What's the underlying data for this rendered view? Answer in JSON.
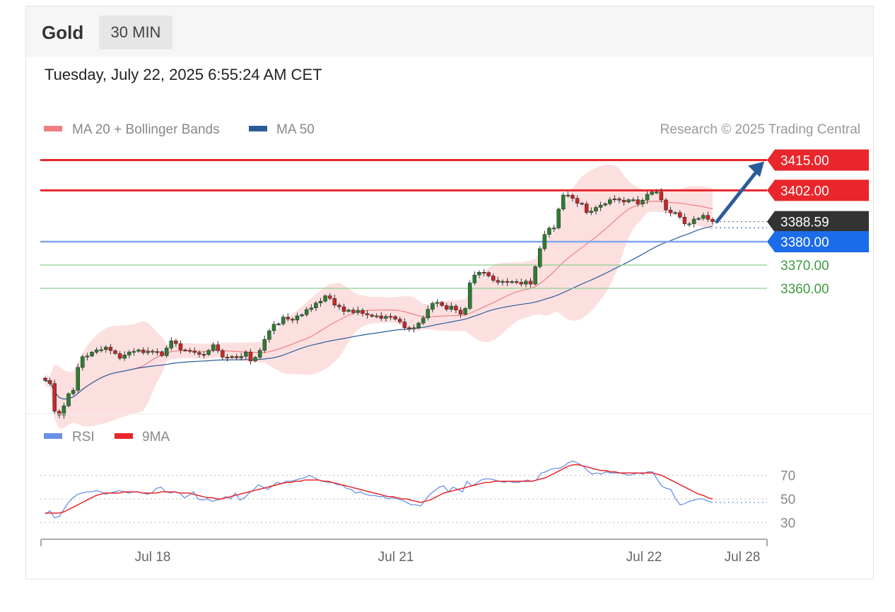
{
  "header": {
    "symbol": "Gold",
    "timeframe": "30 MIN"
  },
  "timestamp": "Tuesday, July 22, 2025 6:55:24 AM CET",
  "legend": {
    "ma20_label": "MA 20 + Bollinger Bands",
    "ma50_label": "MA 50",
    "credit": "Research © 2025 Trading Central",
    "ma20_color": "#f08080",
    "ma50_color": "#2b5c9a"
  },
  "rsi_legend": {
    "rsi_label": "RSI",
    "ma_label": "9MA",
    "rsi_color": "#6b8fe6",
    "ma_color": "#e8262b"
  },
  "chart_data": [
    {
      "type": "candlestick",
      "ylim": [
        3295,
        3420
      ],
      "x_tick_labels": [
        "Jul 18",
        "Jul 21",
        "Jul 22",
        "Jul 28"
      ],
      "candles_close": [
        3320.5,
        3319.2,
        3307.3,
        3305.7,
        3309.6,
        3314.8,
        3316.3,
        3326.1,
        3330.7,
        3331.0,
        3332.6,
        3333.6,
        3333.7,
        3334.8,
        3333.3,
        3332.0,
        3330.0,
        3331.4,
        3332.7,
        3333.0,
        3333.6,
        3332.4,
        3333.1,
        3332.9,
        3332.8,
        3331.1,
        3334.4,
        3337.5,
        3336.3,
        3333.6,
        3333.4,
        3333.0,
        3332.5,
        3331.7,
        3331.6,
        3333.4,
        3335.8,
        3333.3,
        3330.5,
        3330.3,
        3330.8,
        3330.2,
        3330.8,
        3332.7,
        3328.9,
        3330.4,
        3333.4,
        3338.1,
        3341.8,
        3344.6,
        3344.8,
        3347.7,
        3346.8,
        3346.4,
        3348.2,
        3348.7,
        3350.9,
        3351.6,
        3353.7,
        3354.5,
        3356.8,
        3355.7,
        3352.8,
        3352.1,
        3350.1,
        3350.7,
        3349.6,
        3350.6,
        3349.2,
        3348.6,
        3348.0,
        3348.2,
        3347.1,
        3348.0,
        3347.9,
        3346.8,
        3345.6,
        3343.1,
        3342.7,
        3343.1,
        3345.1,
        3347.3,
        3351.0,
        3353.6,
        3354.0,
        3352.6,
        3351.0,
        3352.4,
        3350.7,
        3348.9,
        3351.4,
        3362.3,
        3365.7,
        3366.9,
        3366.8,
        3365.3,
        3363.4,
        3362.6,
        3363.0,
        3362.6,
        3362.9,
        3362.6,
        3361.8,
        3363.1,
        3361.8,
        3369.3,
        3377.0,
        3383.1,
        3385.8,
        3385.9,
        3394.0,
        3400.0,
        3399.9,
        3398.6,
        3396.5,
        3396.2,
        3392.5,
        3393.1,
        3394.7,
        3395.7,
        3396.3,
        3398.0,
        3398.4,
        3397.8,
        3397.0,
        3398.0,
        3398.0,
        3396.2,
        3397.8,
        3400.3,
        3401.3,
        3401.3,
        3397.9,
        3393.6,
        3392.4,
        3392.5,
        3390.5,
        3387.7,
        3387.7,
        3389.7,
        3390.0,
        3391.3,
        3389.6,
        3388.6
      ],
      "ma20_end": 3392.0,
      "ma50_end": 3386.0,
      "bollinger_upper_max": 3406.0,
      "bollinger_lower_min": 3313.0,
      "levels": {
        "resistance": [
          3415.0,
          3402.0
        ],
        "last_price": 3388.59,
        "pivot": 3380.0,
        "support": [
          3370.0,
          3360.0
        ]
      },
      "level_labels": [
        "3415.00",
        "3402.00",
        "3388.59",
        "3380.00",
        "3370.00",
        "3360.00"
      ],
      "colors": {
        "up": "#2e7d32",
        "down": "#c62828",
        "resistance": "#e8262b",
        "pivot": "#1c6be8",
        "support": "#3d9a3d",
        "last": "#333333",
        "arrow": "#2b5c9a"
      }
    },
    {
      "type": "line",
      "title": "RSI",
      "ylim": [
        25,
        80
      ],
      "y_ticks": [
        70,
        50,
        30
      ],
      "y_tick_labels": [
        "70",
        "50",
        "30"
      ],
      "series": [
        {
          "name": "RSI",
          "values": [
            37,
            40,
            34,
            35,
            41,
            47,
            51,
            54,
            55,
            56,
            56,
            57,
            56,
            54,
            55,
            56,
            57,
            56,
            55,
            56,
            56,
            55,
            54,
            55,
            59,
            60,
            56,
            55,
            56,
            55,
            51,
            53,
            56,
            50,
            49,
            50,
            48,
            49,
            50,
            52,
            50,
            55,
            49,
            51,
            55,
            58,
            62,
            60,
            58,
            61,
            64,
            63,
            65,
            65,
            66,
            67,
            68,
            70,
            68,
            66,
            65,
            64,
            64,
            62,
            62,
            59,
            58,
            55,
            56,
            54,
            53,
            53,
            52,
            52,
            50,
            51,
            50,
            49,
            47,
            45,
            45,
            44,
            49,
            54,
            57,
            60,
            61,
            56,
            60,
            58,
            56,
            65,
            61,
            63,
            66,
            67,
            67,
            66,
            65,
            64,
            65,
            64,
            64,
            65,
            66,
            65,
            66,
            72,
            73,
            75,
            76,
            76,
            78,
            81,
            82,
            80,
            78,
            74,
            71,
            72,
            71,
            73,
            72,
            72,
            72,
            71,
            70,
            71,
            72,
            71,
            73,
            73,
            67,
            61,
            59,
            58,
            50,
            45,
            46,
            48,
            49,
            50,
            50,
            48,
            47
          ]
        },
        {
          "name": "9MA",
          "values": [
            38,
            38,
            38,
            38,
            39,
            41,
            43,
            45,
            47,
            49,
            51,
            53,
            54,
            55,
            55,
            55,
            55,
            56,
            56,
            56,
            56,
            55,
            55,
            55,
            55,
            56,
            56,
            56,
            56,
            55,
            55,
            55,
            54,
            53,
            52,
            51,
            51,
            50,
            50,
            51,
            52,
            53,
            54,
            55,
            56,
            57,
            58,
            59,
            60,
            61,
            62,
            63,
            64,
            64,
            65,
            65,
            66,
            66,
            66,
            66,
            65,
            65,
            64,
            63,
            62,
            61,
            60,
            59,
            58,
            57,
            56,
            55,
            54,
            53,
            52,
            52,
            51,
            50,
            50,
            49,
            48,
            47,
            48,
            49,
            51,
            53,
            55,
            56,
            57,
            58,
            59,
            60,
            61,
            62,
            63,
            64,
            64,
            65,
            65,
            65,
            65,
            65,
            65,
            65,
            65,
            65,
            66,
            67,
            68,
            70,
            72,
            74,
            76,
            78,
            79,
            79,
            78,
            77,
            76,
            75,
            74,
            74,
            73,
            73,
            72,
            72,
            72,
            72,
            72,
            72,
            72,
            72,
            71,
            70,
            68,
            66,
            64,
            62,
            60,
            58,
            56,
            54,
            53,
            51,
            50
          ]
        }
      ]
    }
  ]
}
